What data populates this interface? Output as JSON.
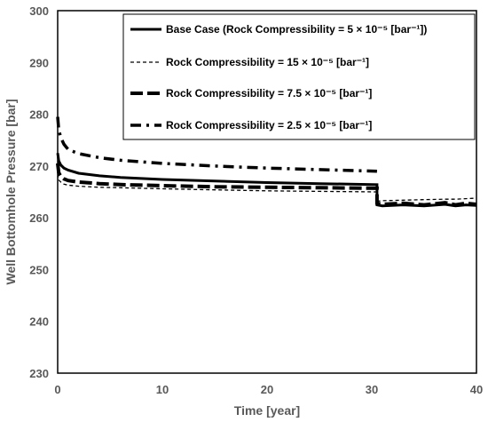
{
  "chart_data": {
    "type": "line",
    "xlabel": "Time [year]",
    "ylabel": "Well Bottomhole Pressure [bar]",
    "xlim": [
      0,
      40
    ],
    "ylim": [
      230,
      300
    ],
    "xticks": [
      0,
      10,
      20,
      30,
      40
    ],
    "yticks": [
      230,
      240,
      250,
      260,
      270,
      280,
      290,
      300
    ],
    "grid": false,
    "legend_position": "top-right",
    "series": [
      {
        "name": "Base Case (Rock Compressibility = 5 × 10⁻⁵ [bar⁻¹])",
        "style": "solid",
        "x": [
          0,
          0.1,
          0.3,
          0.6,
          1,
          2,
          4,
          6,
          10,
          15,
          20,
          25,
          30.5,
          30.5,
          31,
          33,
          35,
          37,
          38,
          39,
          40
        ],
        "y": [
          272.5,
          271,
          270.2,
          269.6,
          269.2,
          268.6,
          268.1,
          267.8,
          267.4,
          267.1,
          266.8,
          266.6,
          266.4,
          262.5,
          262.3,
          262.5,
          262.3,
          262.6,
          262.3,
          262.5,
          262.4
        ]
      },
      {
        "name": "Rock Compressibility = 15 × 10⁻⁵ [bar⁻¹]",
        "style": "short-dash",
        "x": [
          0,
          0.1,
          0.3,
          0.6,
          1,
          2,
          4,
          6,
          10,
          15,
          20,
          25,
          30.5,
          30.5,
          31,
          33,
          35,
          37,
          38,
          39,
          40
        ],
        "y": [
          268.5,
          267.3,
          266.9,
          266.5,
          266.3,
          266.1,
          265.9,
          265.8,
          265.6,
          265.4,
          265.2,
          265.1,
          265.0,
          263.2,
          263.3,
          263.4,
          263.5,
          263.6,
          263.6,
          263.7,
          263.8
        ]
      },
      {
        "name": "Rock Compressibility = 7.5 × 10⁻⁵ [bar⁻¹]",
        "style": "long-dash",
        "x": [
          0,
          0.1,
          0.3,
          0.6,
          1,
          2,
          4,
          6,
          10,
          15,
          20,
          25,
          30.5,
          30.5,
          31,
          33,
          35,
          37,
          38,
          39,
          40
        ],
        "y": [
          270.5,
          268.7,
          268.0,
          267.5,
          267.2,
          266.9,
          266.6,
          266.4,
          266.2,
          266.0,
          265.9,
          265.8,
          265.7,
          262.8,
          262.6,
          262.8,
          262.5,
          262.9,
          262.5,
          262.8,
          262.6
        ]
      },
      {
        "name": "Rock Compressibility = 2.5 × 10⁻⁵ [bar⁻¹]",
        "style": "dash-dot",
        "x": [
          0,
          0.1,
          0.3,
          0.6,
          1,
          2,
          4,
          6,
          10,
          15,
          20,
          25,
          30.5
        ],
        "y": [
          279.5,
          277.0,
          275.5,
          274.2,
          273.2,
          272.4,
          271.6,
          271.1,
          270.5,
          270.0,
          269.6,
          269.3,
          269.0
        ]
      }
    ]
  }
}
